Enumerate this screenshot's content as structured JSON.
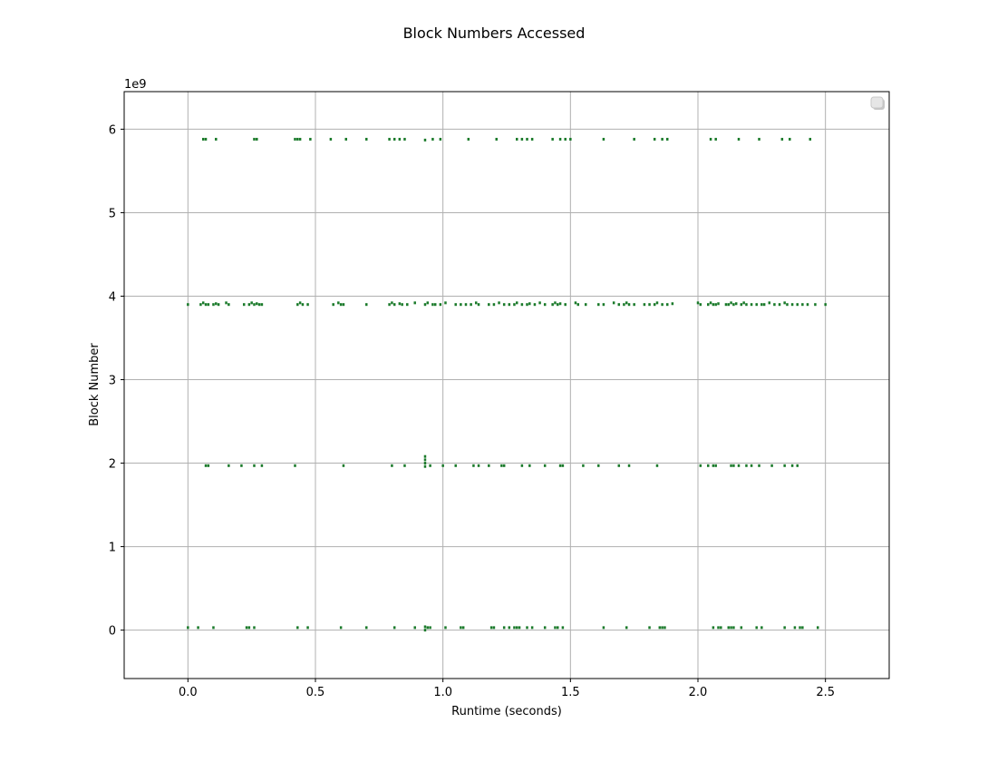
{
  "chart_data": {
    "type": "scatter",
    "title": "Block Numbers Accessed",
    "xlabel": "Runtime (seconds)",
    "ylabel": "Block Number",
    "y_offset_label": "1e9",
    "xlim": [
      -0.25,
      2.75
    ],
    "ylim": [
      -0.58,
      6.45
    ],
    "x_ticks": [
      0.0,
      0.5,
      1.0,
      1.5,
      2.0,
      2.5
    ],
    "x_tick_labels": [
      "0.0",
      "0.5",
      "1.0",
      "1.5",
      "2.0",
      "2.5"
    ],
    "y_ticks": [
      0,
      1,
      2,
      3,
      4,
      5,
      6
    ],
    "y_tick_labels": [
      "0",
      "1",
      "2",
      "3",
      "4",
      "5",
      "6"
    ],
    "grid": true,
    "legend": "top-right",
    "marker_color": "#1a7a2a",
    "series": [
      {
        "points": [
          [
            0.06,
            5.88
          ],
          [
            0.07,
            5.88
          ],
          [
            0.11,
            5.88
          ],
          [
            0.26,
            5.88
          ],
          [
            0.27,
            5.88
          ],
          [
            0.42,
            5.88
          ],
          [
            0.43,
            5.88
          ],
          [
            0.44,
            5.88
          ],
          [
            0.48,
            5.88
          ],
          [
            0.56,
            5.88
          ],
          [
            0.62,
            5.88
          ],
          [
            0.7,
            5.88
          ],
          [
            0.79,
            5.88
          ],
          [
            0.81,
            5.88
          ],
          [
            0.83,
            5.88
          ],
          [
            0.85,
            5.88
          ],
          [
            0.93,
            5.87
          ],
          [
            0.96,
            5.88
          ],
          [
            0.99,
            5.88
          ],
          [
            1.1,
            5.88
          ],
          [
            1.21,
            5.88
          ],
          [
            1.29,
            5.88
          ],
          [
            1.31,
            5.88
          ],
          [
            1.33,
            5.88
          ],
          [
            1.35,
            5.88
          ],
          [
            1.43,
            5.88
          ],
          [
            1.46,
            5.88
          ],
          [
            1.48,
            5.88
          ],
          [
            1.5,
            5.88
          ],
          [
            1.63,
            5.88
          ],
          [
            1.75,
            5.88
          ],
          [
            1.83,
            5.88
          ],
          [
            1.86,
            5.88
          ],
          [
            1.88,
            5.88
          ],
          [
            2.05,
            5.88
          ],
          [
            2.07,
            5.88
          ],
          [
            2.16,
            5.88
          ],
          [
            2.24,
            5.88
          ],
          [
            2.33,
            5.88
          ],
          [
            2.36,
            5.88
          ],
          [
            2.44,
            5.88
          ],
          [
            0.0,
            3.9
          ],
          [
            0.05,
            3.9
          ],
          [
            0.06,
            3.92
          ],
          [
            0.07,
            3.9
          ],
          [
            0.08,
            3.9
          ],
          [
            0.1,
            3.9
          ],
          [
            0.11,
            3.91
          ],
          [
            0.12,
            3.9
          ],
          [
            0.15,
            3.92
          ],
          [
            0.16,
            3.9
          ],
          [
            0.22,
            3.9
          ],
          [
            0.24,
            3.9
          ],
          [
            0.25,
            3.92
          ],
          [
            0.26,
            3.9
          ],
          [
            0.27,
            3.91
          ],
          [
            0.28,
            3.9
          ],
          [
            0.29,
            3.9
          ],
          [
            0.43,
            3.9
          ],
          [
            0.44,
            3.92
          ],
          [
            0.45,
            3.9
          ],
          [
            0.47,
            3.9
          ],
          [
            0.57,
            3.9
          ],
          [
            0.59,
            3.92
          ],
          [
            0.6,
            3.9
          ],
          [
            0.61,
            3.9
          ],
          [
            0.7,
            3.9
          ],
          [
            0.79,
            3.9
          ],
          [
            0.8,
            3.92
          ],
          [
            0.81,
            3.9
          ],
          [
            0.83,
            3.91
          ],
          [
            0.84,
            3.9
          ],
          [
            0.86,
            3.9
          ],
          [
            0.89,
            3.92
          ],
          [
            0.93,
            3.9
          ],
          [
            0.94,
            3.92
          ],
          [
            0.96,
            3.9
          ],
          [
            0.97,
            3.9
          ],
          [
            0.99,
            3.9
          ],
          [
            1.01,
            3.92
          ],
          [
            1.05,
            3.9
          ],
          [
            1.07,
            3.9
          ],
          [
            1.09,
            3.9
          ],
          [
            1.11,
            3.9
          ],
          [
            1.13,
            3.92
          ],
          [
            1.14,
            3.9
          ],
          [
            1.18,
            3.9
          ],
          [
            1.2,
            3.9
          ],
          [
            1.22,
            3.92
          ],
          [
            1.24,
            3.9
          ],
          [
            1.26,
            3.9
          ],
          [
            1.28,
            3.9
          ],
          [
            1.29,
            3.92
          ],
          [
            1.31,
            3.9
          ],
          [
            1.33,
            3.9
          ],
          [
            1.34,
            3.91
          ],
          [
            1.36,
            3.9
          ],
          [
            1.38,
            3.92
          ],
          [
            1.4,
            3.9
          ],
          [
            1.43,
            3.9
          ],
          [
            1.44,
            3.92
          ],
          [
            1.45,
            3.9
          ],
          [
            1.46,
            3.91
          ],
          [
            1.48,
            3.9
          ],
          [
            1.52,
            3.92
          ],
          [
            1.53,
            3.9
          ],
          [
            1.56,
            3.9
          ],
          [
            1.61,
            3.9
          ],
          [
            1.63,
            3.9
          ],
          [
            1.67,
            3.92
          ],
          [
            1.69,
            3.9
          ],
          [
            1.71,
            3.9
          ],
          [
            1.72,
            3.92
          ],
          [
            1.73,
            3.9
          ],
          [
            1.75,
            3.9
          ],
          [
            1.79,
            3.9
          ],
          [
            1.81,
            3.9
          ],
          [
            1.83,
            3.9
          ],
          [
            1.84,
            3.92
          ],
          [
            1.86,
            3.9
          ],
          [
            1.88,
            3.9
          ],
          [
            1.9,
            3.91
          ],
          [
            2.0,
            3.92
          ],
          [
            2.01,
            3.9
          ],
          [
            2.04,
            3.9
          ],
          [
            2.05,
            3.92
          ],
          [
            2.06,
            3.9
          ],
          [
            2.07,
            3.9
          ],
          [
            2.08,
            3.91
          ],
          [
            2.11,
            3.9
          ],
          [
            2.12,
            3.9
          ],
          [
            2.13,
            3.92
          ],
          [
            2.14,
            3.9
          ],
          [
            2.15,
            3.91
          ],
          [
            2.17,
            3.9
          ],
          [
            2.18,
            3.92
          ],
          [
            2.19,
            3.9
          ],
          [
            2.21,
            3.9
          ],
          [
            2.23,
            3.9
          ],
          [
            2.25,
            3.9
          ],
          [
            2.26,
            3.9
          ],
          [
            2.28,
            3.92
          ],
          [
            2.3,
            3.9
          ],
          [
            2.32,
            3.9
          ],
          [
            2.34,
            3.92
          ],
          [
            2.35,
            3.9
          ],
          [
            2.37,
            3.9
          ],
          [
            2.39,
            3.9
          ],
          [
            2.41,
            3.9
          ],
          [
            2.43,
            3.9
          ],
          [
            2.46,
            3.9
          ],
          [
            2.5,
            3.9
          ],
          [
            0.07,
            1.97
          ],
          [
            0.08,
            1.97
          ],
          [
            0.16,
            1.97
          ],
          [
            0.21,
            1.97
          ],
          [
            0.26,
            1.97
          ],
          [
            0.29,
            1.97
          ],
          [
            0.42,
            1.97
          ],
          [
            0.61,
            1.97
          ],
          [
            0.8,
            1.97
          ],
          [
            0.85,
            1.97
          ],
          [
            0.93,
            2.08
          ],
          [
            0.93,
            2.04
          ],
          [
            0.93,
            2.0
          ],
          [
            0.93,
            1.96
          ],
          [
            0.95,
            1.97
          ],
          [
            1.0,
            1.97
          ],
          [
            1.05,
            1.97
          ],
          [
            1.12,
            1.97
          ],
          [
            1.14,
            1.97
          ],
          [
            1.18,
            1.97
          ],
          [
            1.23,
            1.97
          ],
          [
            1.24,
            1.97
          ],
          [
            1.31,
            1.97
          ],
          [
            1.34,
            1.97
          ],
          [
            1.4,
            1.97
          ],
          [
            1.46,
            1.97
          ],
          [
            1.47,
            1.97
          ],
          [
            1.55,
            1.97
          ],
          [
            1.61,
            1.97
          ],
          [
            1.69,
            1.97
          ],
          [
            1.73,
            1.97
          ],
          [
            1.84,
            1.97
          ],
          [
            2.01,
            1.97
          ],
          [
            2.04,
            1.97
          ],
          [
            2.06,
            1.97
          ],
          [
            2.07,
            1.97
          ],
          [
            2.13,
            1.97
          ],
          [
            2.14,
            1.97
          ],
          [
            2.16,
            1.97
          ],
          [
            2.19,
            1.97
          ],
          [
            2.21,
            1.97
          ],
          [
            2.24,
            1.97
          ],
          [
            2.29,
            1.97
          ],
          [
            2.34,
            1.97
          ],
          [
            2.37,
            1.97
          ],
          [
            2.39,
            1.97
          ],
          [
            0.0,
            0.03
          ],
          [
            0.04,
            0.03
          ],
          [
            0.1,
            0.03
          ],
          [
            0.23,
            0.03
          ],
          [
            0.24,
            0.03
          ],
          [
            0.26,
            0.03
          ],
          [
            0.43,
            0.03
          ],
          [
            0.47,
            0.03
          ],
          [
            0.6,
            0.03
          ],
          [
            0.7,
            0.03
          ],
          [
            0.81,
            0.03
          ],
          [
            0.89,
            0.03
          ],
          [
            0.93,
            0.0
          ],
          [
            0.93,
            0.04
          ],
          [
            0.94,
            0.03
          ],
          [
            0.95,
            0.03
          ],
          [
            1.01,
            0.03
          ],
          [
            1.07,
            0.03
          ],
          [
            1.08,
            0.03
          ],
          [
            1.19,
            0.03
          ],
          [
            1.2,
            0.03
          ],
          [
            1.24,
            0.03
          ],
          [
            1.26,
            0.03
          ],
          [
            1.28,
            0.03
          ],
          [
            1.29,
            0.03
          ],
          [
            1.3,
            0.03
          ],
          [
            1.33,
            0.03
          ],
          [
            1.35,
            0.03
          ],
          [
            1.4,
            0.03
          ],
          [
            1.44,
            0.03
          ],
          [
            1.45,
            0.03
          ],
          [
            1.47,
            0.03
          ],
          [
            1.63,
            0.03
          ],
          [
            1.72,
            0.03
          ],
          [
            1.81,
            0.03
          ],
          [
            1.85,
            0.03
          ],
          [
            1.86,
            0.03
          ],
          [
            1.87,
            0.03
          ],
          [
            2.06,
            0.03
          ],
          [
            2.08,
            0.03
          ],
          [
            2.09,
            0.03
          ],
          [
            2.12,
            0.03
          ],
          [
            2.13,
            0.03
          ],
          [
            2.14,
            0.03
          ],
          [
            2.17,
            0.03
          ],
          [
            2.23,
            0.03
          ],
          [
            2.25,
            0.03
          ],
          [
            2.34,
            0.03
          ],
          [
            2.38,
            0.03
          ],
          [
            2.4,
            0.03
          ],
          [
            2.41,
            0.03
          ],
          [
            2.47,
            0.03
          ]
        ]
      }
    ]
  }
}
